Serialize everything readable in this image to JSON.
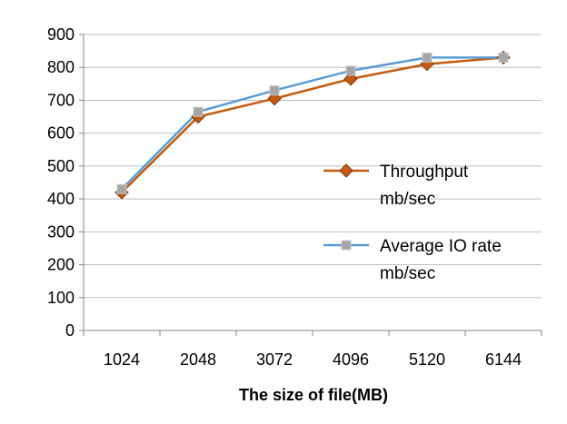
{
  "chart_data": {
    "type": "line",
    "title": "",
    "xlabel": "The size of file(MB)",
    "ylabel": "",
    "categories": [
      "1024",
      "2048",
      "3072",
      "4096",
      "5120",
      "6144"
    ],
    "ylim": [
      0,
      900
    ],
    "yticks": [
      0,
      100,
      200,
      300,
      400,
      500,
      600,
      700,
      800,
      900
    ],
    "grid": "horizontal",
    "legend_position": "right",
    "series": [
      {
        "name_lines": [
          "Throughput",
          "mb/sec"
        ],
        "values": [
          420,
          650,
          705,
          765,
          810,
          830
        ],
        "color": "#c55a11",
        "marker": "diamond"
      },
      {
        "name_lines": [
          "Average IO rate",
          "mb/sec"
        ],
        "values": [
          430,
          665,
          730,
          790,
          830,
          830
        ],
        "color": "#5b9bd5",
        "marker": "square"
      }
    ]
  }
}
